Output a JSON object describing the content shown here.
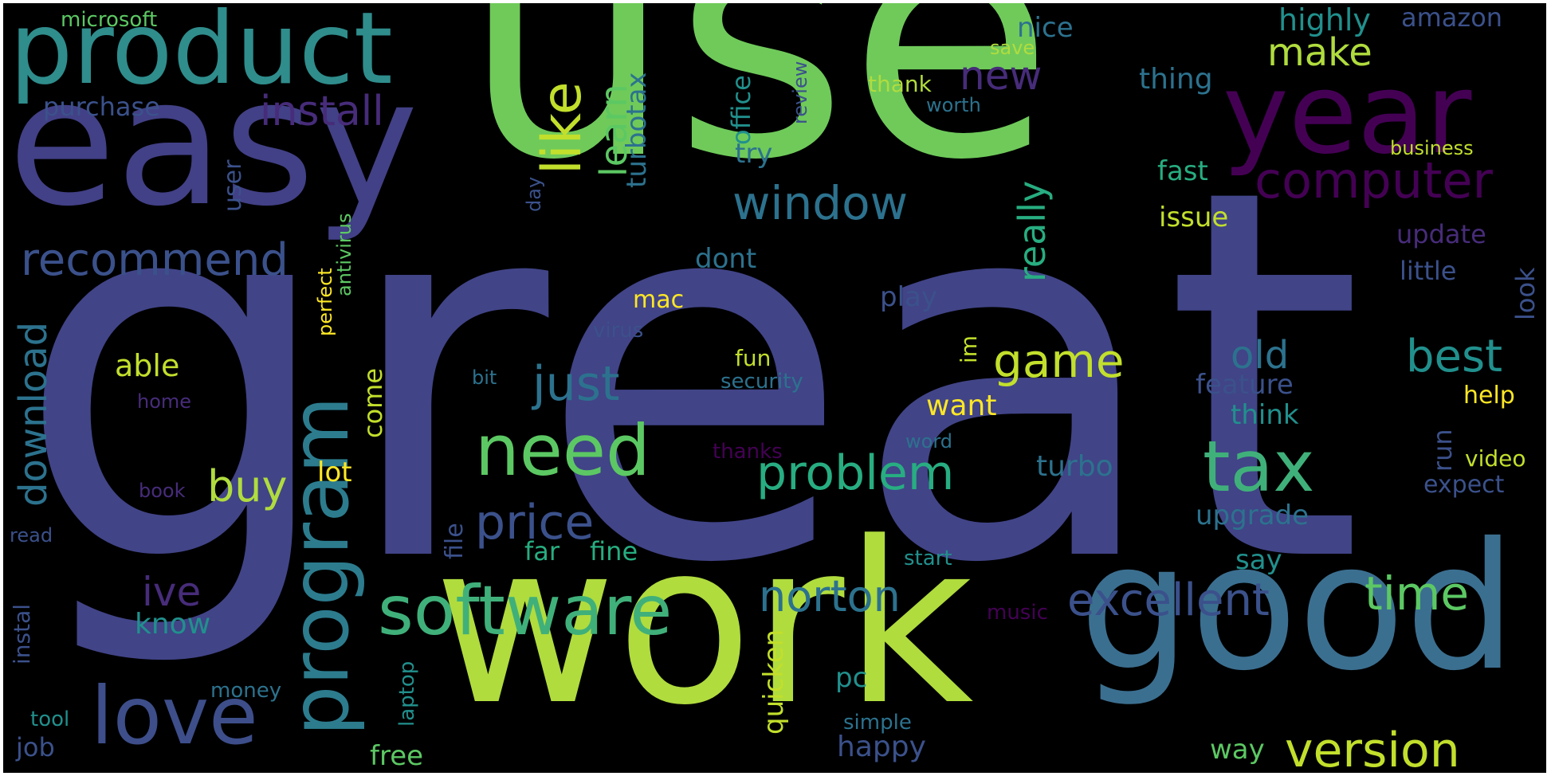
{
  "palette": {
    "background": "#000000",
    "dark_purple": "#440154",
    "indigo": "#472c7a",
    "blue_violet": "#3b518b",
    "steel_blue": "#2c728e",
    "teal": "#21908d",
    "green_teal": "#27ad81",
    "green": "#5cc863",
    "lime": "#aadc32",
    "yellow": "#fde725"
  },
  "words": {
    "use": "use",
    "great": "great",
    "work": "work",
    "good": "good",
    "easy": "easy",
    "product": "product",
    "year": "year",
    "program": "program",
    "love": "love",
    "software": "software",
    "need": "need",
    "tax": "tax",
    "computer": "computer",
    "like": "like",
    "install": "install",
    "window": "window",
    "recommend": "recommend",
    "price": "price",
    "just": "just",
    "problem": "problem",
    "version": "version",
    "time": "time",
    "excellent": "excellent",
    "norton": "norton",
    "game": "game",
    "best": "best",
    "buy": "buy",
    "download": "download",
    "new": "new",
    "make": "make",
    "learn": "learn",
    "really": "really",
    "old": "old",
    "ive": "ive",
    "know": "know",
    "able": "able",
    "turbotax": "turbotax",
    "office": "office",
    "purchase": "purchase",
    "thing": "thing",
    "highly": "highly",
    "amazon": "amazon",
    "nice": "nice",
    "microsoft": "microsoft",
    "save": "save",
    "review": "review",
    "thank": "thank",
    "worth": "worth",
    "business": "business",
    "fast": "fast",
    "issue": "issue",
    "try": "try",
    "user": "user",
    "antivirus": "antivirus",
    "day": "day",
    "perfect": "perfect",
    "dont": "dont",
    "update": "update",
    "little": "little",
    "look": "look",
    "play": "play",
    "mac": "mac",
    "im": "im",
    "virus": "virus",
    "fun": "fun",
    "security": "security",
    "bit": "bit",
    "home": "home",
    "come": "come",
    "want": "want",
    "feature": "feature",
    "think": "think",
    "help": "help",
    "run": "run",
    "word": "word",
    "thanks": "thanks",
    "video": "video",
    "turbo": "turbo",
    "lot": "lot",
    "book": "book",
    "expect": "expect",
    "file": "file",
    "upgrade": "upgrade",
    "read": "read",
    "instal": "instal",
    "far": "far",
    "fine": "fine",
    "start": "start",
    "say": "say",
    "music": "music",
    "quicken": "quicken",
    "pc": "pc",
    "laptop": "laptop",
    "money": "money",
    "tool": "tool",
    "job": "job",
    "simple": "simple",
    "happy": "happy",
    "free": "free",
    "way": "way"
  }
}
